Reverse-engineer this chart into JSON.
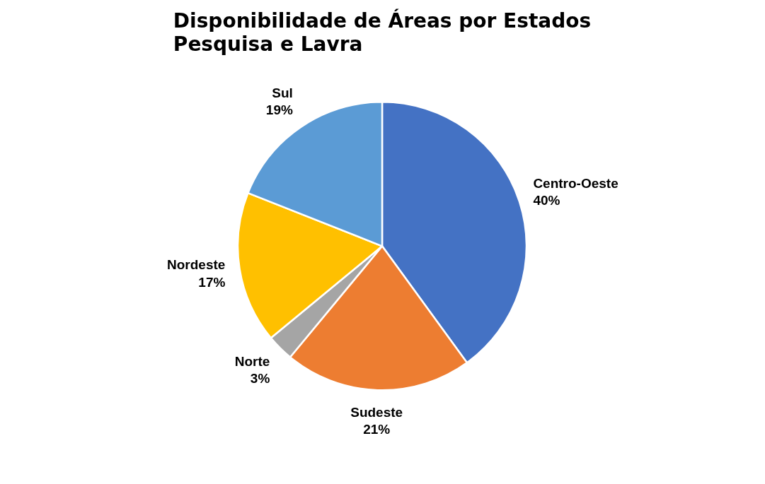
{
  "chart_data": {
    "type": "pie",
    "title": "Disponibilidade de Áreas por Estados\nPesquisa e Lavra",
    "categories": [
      "Centro-Oeste",
      "Sudeste",
      "Norte",
      "Nordeste",
      "Sul"
    ],
    "values": [
      40,
      21,
      3,
      17,
      19
    ],
    "colors": [
      "#4472c4",
      "#ed7d31",
      "#a5a5a5",
      "#ffc000",
      "#5b9bd5"
    ],
    "value_labels": [
      "40%",
      "21%",
      "3%",
      "17%",
      "19%"
    ]
  }
}
